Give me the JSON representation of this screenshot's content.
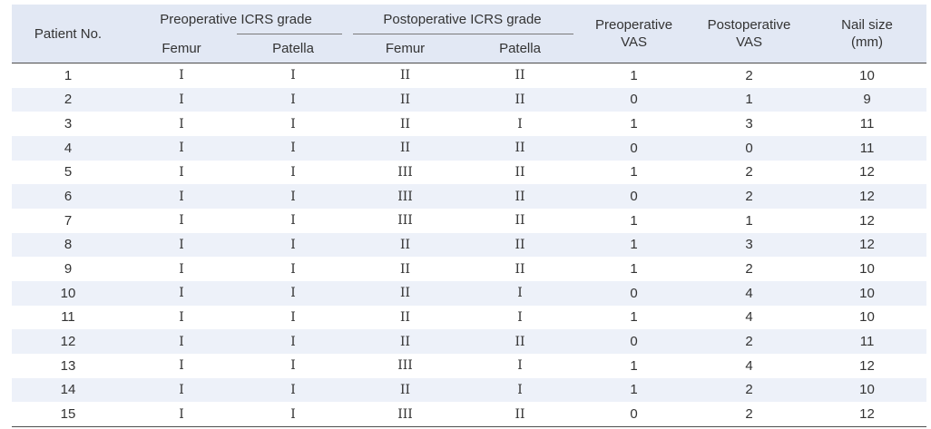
{
  "table": {
    "headers": {
      "patient_no": "Patient No.",
      "preop_icrs": "Preoperative ICRS grade",
      "postop_icrs": "Postoperative ICRS grade",
      "preop_vas_line1": "Preoperative",
      "preop_vas_line2": "VAS",
      "postop_vas_line1": "Postoperative",
      "postop_vas_line2": "VAS",
      "nail_size_line1": "Nail size",
      "nail_size_line2": "(mm)",
      "sub_femur_pre": "Femur",
      "sub_patella_pre": "Patella",
      "sub_femur_post": "Femur",
      "sub_patella_post": "Patella"
    },
    "rows": [
      [
        "1",
        "I",
        "I",
        "II",
        "II",
        "1",
        "2",
        "10"
      ],
      [
        "2",
        "I",
        "I",
        "II",
        "II",
        "0",
        "1",
        "9"
      ],
      [
        "3",
        "I",
        "I",
        "II",
        "I",
        "1",
        "3",
        "11"
      ],
      [
        "4",
        "I",
        "I",
        "II",
        "II",
        "0",
        "0",
        "11"
      ],
      [
        "5",
        "I",
        "I",
        "III",
        "II",
        "1",
        "2",
        "12"
      ],
      [
        "6",
        "I",
        "I",
        "III",
        "II",
        "0",
        "2",
        "12"
      ],
      [
        "7",
        "I",
        "I",
        "III",
        "II",
        "1",
        "1",
        "12"
      ],
      [
        "8",
        "I",
        "I",
        "II",
        "II",
        "1",
        "3",
        "12"
      ],
      [
        "9",
        "I",
        "I",
        "II",
        "II",
        "1",
        "2",
        "10"
      ],
      [
        "10",
        "I",
        "I",
        "II",
        "I",
        "0",
        "4",
        "10"
      ],
      [
        "11",
        "I",
        "I",
        "II",
        "I",
        "1",
        "4",
        "10"
      ],
      [
        "12",
        "I",
        "I",
        "II",
        "II",
        "0",
        "2",
        "11"
      ],
      [
        "13",
        "I",
        "I",
        "III",
        "I",
        "1",
        "4",
        "12"
      ],
      [
        "14",
        "I",
        "I",
        "II",
        "I",
        "1",
        "2",
        "10"
      ],
      [
        "15",
        "I",
        "I",
        "III",
        "II",
        "0",
        "2",
        "12"
      ]
    ]
  }
}
